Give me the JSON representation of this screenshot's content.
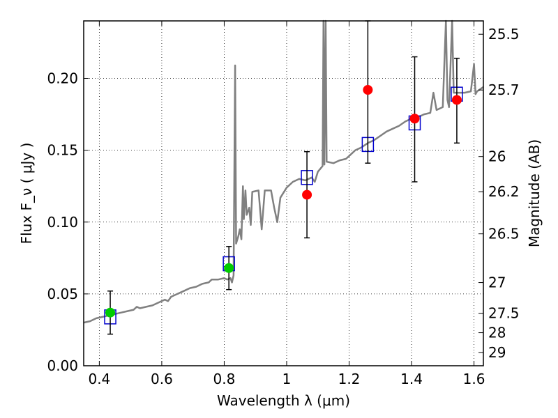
{
  "chart_data": {
    "type": "scatter",
    "xlabel": "Wavelength  λ (μm)",
    "ylabel_left": "Flux  F_ν  ( μJy )",
    "ylabel_right": "Magnitude (AB)",
    "xlim": [
      0.35,
      1.63
    ],
    "ylim": [
      0.0,
      0.24
    ],
    "grid": true,
    "x_ticks": [
      {
        "value": 0.4,
        "label": "0.4"
      },
      {
        "value": 0.6,
        "label": "0.6"
      },
      {
        "value": 0.8,
        "label": "0.8"
      },
      {
        "value": 1.0,
        "label": "1"
      },
      {
        "value": 1.2,
        "label": "1.2"
      },
      {
        "value": 1.4,
        "label": "1.4"
      },
      {
        "value": 1.6,
        "label": "1.6"
      }
    ],
    "y_ticks": [
      {
        "value": 0.0,
        "label": "0.00"
      },
      {
        "value": 0.05,
        "label": "0.05"
      },
      {
        "value": 0.1,
        "label": "0.10"
      },
      {
        "value": 0.15,
        "label": "0.15"
      },
      {
        "value": 0.2,
        "label": "0.20"
      }
    ],
    "right_ticks": [
      {
        "label": "25.5",
        "flux": 0.2307
      },
      {
        "label": "25.7",
        "flux": 0.1919
      },
      {
        "label": "26",
        "flux": 0.1456
      },
      {
        "label": "26.2",
        "flux": 0.1211
      },
      {
        "label": "26.5",
        "flux": 0.0918
      },
      {
        "label": "27",
        "flux": 0.0579
      },
      {
        "label": "27.5",
        "flux": 0.0365
      },
      {
        "label": "28",
        "flux": 0.023
      },
      {
        "label": "29",
        "flux": 0.0092
      }
    ],
    "colors": {
      "model": "#808080",
      "green": "#00cc00",
      "red": "#ff0000",
      "square": "#0000cc",
      "errorbar": "#000000"
    },
    "series": [
      {
        "kind": "model_spectrum",
        "points": [
          [
            0.35,
            0.03
          ],
          [
            0.37,
            0.031
          ],
          [
            0.39,
            0.033
          ],
          [
            0.41,
            0.034
          ],
          [
            0.43,
            0.035
          ],
          [
            0.45,
            0.036
          ],
          [
            0.47,
            0.037
          ],
          [
            0.49,
            0.038
          ],
          [
            0.51,
            0.039
          ],
          [
            0.52,
            0.041
          ],
          [
            0.53,
            0.04
          ],
          [
            0.55,
            0.041
          ],
          [
            0.57,
            0.042
          ],
          [
            0.59,
            0.044
          ],
          [
            0.61,
            0.046
          ],
          [
            0.62,
            0.045
          ],
          [
            0.63,
            0.048
          ],
          [
            0.65,
            0.05
          ],
          [
            0.67,
            0.052
          ],
          [
            0.69,
            0.054
          ],
          [
            0.71,
            0.055
          ],
          [
            0.73,
            0.057
          ],
          [
            0.75,
            0.058
          ],
          [
            0.76,
            0.06
          ],
          [
            0.78,
            0.06
          ],
          [
            0.8,
            0.061
          ],
          [
            0.81,
            0.06
          ],
          [
            0.82,
            0.061
          ],
          [
            0.825,
            0.058
          ],
          [
            0.83,
            0.063
          ],
          [
            0.835,
            0.209
          ],
          [
            0.838,
            0.085
          ],
          [
            0.845,
            0.09
          ],
          [
            0.85,
            0.095
          ],
          [
            0.855,
            0.088
          ],
          [
            0.86,
            0.125
          ],
          [
            0.863,
            0.102
          ],
          [
            0.868,
            0.122
          ],
          [
            0.872,
            0.105
          ],
          [
            0.88,
            0.11
          ],
          [
            0.885,
            0.098
          ],
          [
            0.89,
            0.121
          ],
          [
            0.91,
            0.122
          ],
          [
            0.92,
            0.095
          ],
          [
            0.93,
            0.122
          ],
          [
            0.95,
            0.122
          ],
          [
            0.96,
            0.11
          ],
          [
            0.97,
            0.1
          ],
          [
            0.98,
            0.117
          ],
          [
            1.0,
            0.124
          ],
          [
            1.02,
            0.128
          ],
          [
            1.04,
            0.13
          ],
          [
            1.06,
            0.129
          ],
          [
            1.08,
            0.131
          ],
          [
            1.09,
            0.128
          ],
          [
            1.1,
            0.135
          ],
          [
            1.115,
            0.139
          ],
          [
            1.118,
            0.24
          ],
          [
            1.121,
            0.14
          ],
          [
            1.125,
            0.24
          ],
          [
            1.128,
            0.142
          ],
          [
            1.15,
            0.141
          ],
          [
            1.17,
            0.143
          ],
          [
            1.19,
            0.144
          ],
          [
            1.2,
            0.146
          ],
          [
            1.22,
            0.15
          ],
          [
            1.24,
            0.152
          ],
          [
            1.26,
            0.155
          ],
          [
            1.28,
            0.157
          ],
          [
            1.3,
            0.16
          ],
          [
            1.32,
            0.163
          ],
          [
            1.34,
            0.165
          ],
          [
            1.36,
            0.167
          ],
          [
            1.38,
            0.17
          ],
          [
            1.4,
            0.172
          ],
          [
            1.42,
            0.173
          ],
          [
            1.44,
            0.175
          ],
          [
            1.46,
            0.176
          ],
          [
            1.47,
            0.19
          ],
          [
            1.48,
            0.178
          ],
          [
            1.5,
            0.18
          ],
          [
            1.51,
            0.24
          ],
          [
            1.515,
            0.185
          ],
          [
            1.52,
            0.18
          ],
          [
            1.53,
            0.24
          ],
          [
            1.535,
            0.19
          ],
          [
            1.55,
            0.19
          ],
          [
            1.57,
            0.19
          ],
          [
            1.59,
            0.191
          ],
          [
            1.6,
            0.21
          ],
          [
            1.605,
            0.189
          ],
          [
            1.61,
            0.191
          ],
          [
            1.63,
            0.194
          ]
        ]
      },
      {
        "kind": "model_photometry",
        "points": [
          [
            0.435,
            0.034
          ],
          [
            0.815,
            0.071
          ],
          [
            1.065,
            0.131
          ],
          [
            1.26,
            0.154
          ],
          [
            1.41,
            0.169
          ],
          [
            1.545,
            0.189
          ]
        ]
      },
      {
        "kind": "observed_green",
        "points": [
          {
            "x": 0.435,
            "y": 0.037,
            "lo": 0.022,
            "hi": 0.052
          },
          {
            "x": 0.815,
            "y": 0.068,
            "lo": 0.053,
            "hi": 0.083
          }
        ]
      },
      {
        "kind": "observed_red",
        "points": [
          {
            "x": 1.065,
            "y": 0.119,
            "lo": 0.089,
            "hi": 0.149
          },
          {
            "x": 1.26,
            "y": 0.192,
            "lo": 0.141,
            "hi": 0.24
          },
          {
            "x": 1.41,
            "y": 0.172,
            "lo": 0.128,
            "hi": 0.215
          },
          {
            "x": 1.545,
            "y": 0.185,
            "lo": 0.155,
            "hi": 0.214
          }
        ]
      }
    ]
  }
}
